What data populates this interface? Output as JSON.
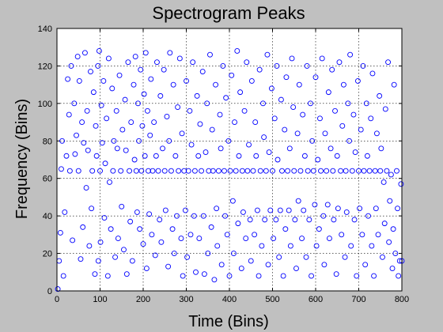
{
  "chart_data": {
    "type": "scatter",
    "title": "Spectrogram Peaks",
    "xlabel": "Time (Bins)",
    "ylabel": "Frequency (Bins)",
    "xlim": [
      0,
      800
    ],
    "ylim": [
      0,
      140
    ],
    "xticks": [
      "0",
      "100",
      "200",
      "300",
      "400",
      "500",
      "600",
      "700",
      "800"
    ],
    "yticks": [
      "0",
      "20",
      "40",
      "60",
      "80",
      "100",
      "120",
      "140"
    ],
    "grid": true,
    "legend": "none",
    "colors": {
      "background": "#c0c0c0",
      "plot_area": "#ffffff",
      "marker": "#0000ff"
    },
    "series": [
      {
        "marker": "circle-open",
        "points": [
          [
            2,
            1
          ],
          [
            5,
            16
          ],
          [
            8,
            31
          ],
          [
            10,
            65
          ],
          [
            12,
            80
          ],
          [
            15,
            8
          ],
          [
            18,
            42
          ],
          [
            22,
            72
          ],
          [
            25,
            113
          ],
          [
            28,
            94
          ],
          [
            30,
            64
          ],
          [
            33,
            120
          ],
          [
            36,
            27
          ],
          [
            40,
            100
          ],
          [
            42,
            73
          ],
          [
            45,
            83
          ],
          [
            48,
            125
          ],
          [
            50,
            64
          ],
          [
            52,
            112
          ],
          [
            55,
            17
          ],
          [
            58,
            90
          ],
          [
            60,
            34
          ],
          [
            62,
            79
          ],
          [
            65,
            127
          ],
          [
            68,
            55
          ],
          [
            70,
            96
          ],
          [
            72,
            75
          ],
          [
            75,
            24
          ],
          [
            78,
            117
          ],
          [
            80,
            44
          ],
          [
            82,
            64
          ],
          [
            85,
            106
          ],
          [
            88,
            9
          ],
          [
            90,
            88
          ],
          [
            92,
            72
          ],
          [
            95,
            120
          ],
          [
            96,
            16
          ],
          [
            98,
            128
          ],
          [
            100,
            64
          ],
          [
            101,
            26
          ],
          [
            103,
            99
          ],
          [
            105,
            79
          ],
          [
            108,
            112
          ],
          [
            110,
            39
          ],
          [
            112,
            68
          ],
          [
            115,
            92
          ],
          [
            118,
            8
          ],
          [
            120,
            124
          ],
          [
            122,
            58
          ],
          [
            125,
            33
          ],
          [
            128,
            108
          ],
          [
            130,
            64
          ],
          [
            132,
            80
          ],
          [
            135,
            18
          ],
          [
            138,
            96
          ],
          [
            140,
            76
          ],
          [
            142,
            28
          ],
          [
            145,
            115
          ],
          [
            148,
            64
          ],
          [
            150,
            45
          ],
          [
            152,
            86
          ],
          [
            155,
            22
          ],
          [
            158,
            102
          ],
          [
            160,
            75
          ],
          [
            162,
            9
          ],
          [
            165,
            122
          ],
          [
            168,
            64
          ],
          [
            170,
            37
          ],
          [
            172,
            90
          ],
          [
            175,
            16
          ],
          [
            178,
            110
          ],
          [
            180,
            70
          ],
          [
            182,
            125
          ],
          [
            184,
            64
          ],
          [
            186,
            42
          ],
          [
            188,
            100
          ],
          [
            190,
            80
          ],
          [
            192,
            33
          ],
          [
            194,
            118
          ],
          [
            196,
            64
          ],
          [
            198,
            88
          ],
          [
            200,
            25
          ],
          [
            202,
            105
          ],
          [
            204,
            72
          ],
          [
            206,
            127
          ],
          [
            208,
            12
          ],
          [
            210,
            96
          ],
          [
            212,
            64
          ],
          [
            214,
            41
          ],
          [
            216,
            83
          ],
          [
            218,
            113
          ],
          [
            220,
            30
          ],
          [
            222,
            64
          ],
          [
            225,
            90
          ],
          [
            228,
            19
          ],
          [
            230,
            72
          ],
          [
            232,
            122
          ],
          [
            235,
            64
          ],
          [
            238,
            38
          ],
          [
            240,
            104
          ],
          [
            242,
            26
          ],
          [
            245,
            76
          ],
          [
            248,
            118
          ],
          [
            250,
            64
          ],
          [
            252,
            43
          ],
          [
            255,
            93
          ],
          [
            258,
            13
          ],
          [
            260,
            80
          ],
          [
            262,
            127
          ],
          [
            265,
            64
          ],
          [
            268,
            33
          ],
          [
            270,
            110
          ],
          [
            272,
            20
          ],
          [
            275,
            72
          ],
          [
            278,
            40
          ],
          [
            280,
            98
          ],
          [
            282,
            64
          ],
          [
            285,
            124
          ],
          [
            288,
            28
          ],
          [
            290,
            84
          ],
          [
            292,
            8
          ],
          [
            295,
            64
          ],
          [
            298,
            43
          ],
          [
            300,
            112
          ],
          [
            302,
            18
          ],
          [
            305,
            64
          ],
          [
            308,
            96
          ],
          [
            310,
            30
          ],
          [
            312,
            78
          ],
          [
            315,
            122
          ],
          [
            318,
            40
          ],
          [
            320,
            64
          ],
          [
            322,
            10
          ],
          [
            325,
            104
          ],
          [
            328,
            72
          ],
          [
            330,
            28
          ],
          [
            332,
            89
          ],
          [
            335,
            64
          ],
          [
            338,
            117
          ],
          [
            340,
            40
          ],
          [
            342,
            9
          ],
          [
            345,
            74
          ],
          [
            348,
            100
          ],
          [
            350,
            20
          ],
          [
            352,
            64
          ],
          [
            355,
            126
          ],
          [
            358,
            34
          ],
          [
            360,
            86
          ],
          [
            362,
            64
          ],
          [
            365,
            6
          ],
          [
            368,
            110
          ],
          [
            370,
            44
          ],
          [
            372,
            24
          ],
          [
            375,
            64
          ],
          [
            378,
            94
          ],
          [
            380,
            76
          ],
          [
            382,
            14
          ],
          [
            385,
            120
          ],
          [
            388,
            64
          ],
          [
            390,
            40
          ],
          [
            392,
            103
          ],
          [
            395,
            30
          ],
          [
            398,
            80
          ],
          [
            400,
            8
          ],
          [
            402,
            64
          ],
          [
            405,
            115
          ],
          [
            408,
            48
          ],
          [
            410,
            20
          ],
          [
            412,
            90
          ],
          [
            415,
            64
          ],
          [
            418,
            128
          ],
          [
            420,
            36
          ],
          [
            422,
            72
          ],
          [
            425,
            106
          ],
          [
            428,
            12
          ],
          [
            430,
            64
          ],
          [
            432,
            42
          ],
          [
            435,
            96
          ],
          [
            438,
            28
          ],
          [
            440,
            122
          ],
          [
            442,
            64
          ],
          [
            445,
            78
          ],
          [
            448,
            38
          ],
          [
            450,
            16
          ],
          [
            452,
            112
          ],
          [
            455,
            64
          ],
          [
            458,
            30
          ],
          [
            460,
            90
          ],
          [
            462,
            72
          ],
          [
            465,
            43
          ],
          [
            468,
            8
          ],
          [
            470,
            118
          ],
          [
            472,
            64
          ],
          [
            475,
            24
          ],
          [
            478,
            100
          ],
          [
            480,
            82
          ],
          [
            482,
            38
          ],
          [
            485,
            64
          ],
          [
            488,
            126
          ],
          [
            490,
            14
          ],
          [
            492,
            74
          ],
          [
            495,
            43
          ],
          [
            498,
            108
          ],
          [
            500,
            64
          ],
          [
            502,
            28
          ],
          [
            505,
            92
          ],
          [
            508,
            38
          ],
          [
            510,
            120
          ],
          [
            512,
            70
          ],
          [
            515,
            18
          ],
          [
            518,
            43
          ],
          [
            520,
            102
          ],
          [
            522,
            64
          ],
          [
            525,
            8
          ],
          [
            528,
            86
          ],
          [
            530,
            33
          ],
          [
            532,
            114
          ],
          [
            535,
            64
          ],
          [
            538,
            43
          ],
          [
            540,
            76
          ],
          [
            542,
            24
          ],
          [
            545,
            124
          ],
          [
            548,
            98
          ],
          [
            550,
            64
          ],
          [
            552,
            38
          ],
          [
            555,
            12
          ],
          [
            558,
            84
          ],
          [
            560,
            48
          ],
          [
            562,
            110
          ],
          [
            565,
            64
          ],
          [
            568,
            28
          ],
          [
            570,
            94
          ],
          [
            572,
            43
          ],
          [
            575,
            72
          ],
          [
            578,
            18
          ],
          [
            580,
            120
          ],
          [
            582,
            64
          ],
          [
            585,
            38
          ],
          [
            588,
            100
          ],
          [
            590,
            8
          ],
          [
            592,
            80
          ],
          [
            595,
            64
          ],
          [
            598,
            46
          ],
          [
            600,
            114
          ],
          [
            602,
            24
          ],
          [
            605,
            70
          ],
          [
            608,
            33
          ],
          [
            610,
            92
          ],
          [
            612,
            64
          ],
          [
            615,
            124
          ],
          [
            618,
            40
          ],
          [
            620,
            14
          ],
          [
            622,
            84
          ],
          [
            625,
            64
          ],
          [
            628,
            46
          ],
          [
            630,
            106
          ],
          [
            632,
            28
          ],
          [
            635,
            76
          ],
          [
            638,
            118
          ],
          [
            640,
            64
          ],
          [
            642,
            38
          ],
          [
            645,
            96
          ],
          [
            648,
            9
          ],
          [
            650,
            72
          ],
          [
            652,
            44
          ],
          [
            655,
            122
          ],
          [
            658,
            64
          ],
          [
            660,
            30
          ],
          [
            662,
            88
          ],
          [
            665,
            110
          ],
          [
            668,
            18
          ],
          [
            670,
            64
          ],
          [
            672,
            42
          ],
          [
            675,
            100
          ],
          [
            678,
            80
          ],
          [
            680,
            126
          ],
          [
            682,
            24
          ],
          [
            685,
            64
          ],
          [
            688,
            94
          ],
          [
            690,
            38
          ],
          [
            692,
            74
          ],
          [
            695,
            8
          ],
          [
            698,
            112
          ],
          [
            700,
            64
          ],
          [
            702,
            44
          ],
          [
            705,
            86
          ],
          [
            708,
            30
          ],
          [
            710,
            120
          ],
          [
            712,
            64
          ],
          [
            715,
            14
          ],
          [
            718,
            100
          ],
          [
            720,
            72
          ],
          [
            722,
            40
          ],
          [
            725,
            64
          ],
          [
            728,
            92
          ],
          [
            730,
            24
          ],
          [
            732,
            116
          ],
          [
            735,
            8
          ],
          [
            738,
            64
          ],
          [
            740,
            44
          ],
          [
            742,
            84
          ],
          [
            745,
            30
          ],
          [
            748,
            104
          ],
          [
            750,
            64
          ],
          [
            752,
            76
          ],
          [
            755,
            18
          ],
          [
            758,
            58
          ],
          [
            760,
            36
          ],
          [
            762,
            97
          ],
          [
            765,
            64
          ],
          [
            768,
            122
          ],
          [
            770,
            26
          ],
          [
            772,
            48
          ],
          [
            775,
            62
          ],
          [
            778,
            12
          ],
          [
            780,
            33
          ],
          [
            782,
            110
          ],
          [
            785,
            20
          ],
          [
            788,
            64
          ],
          [
            790,
            44
          ],
          [
            792,
            8
          ],
          [
            795,
            16
          ],
          [
            798,
            57
          ],
          [
            800,
            16
          ]
        ]
      }
    ]
  }
}
